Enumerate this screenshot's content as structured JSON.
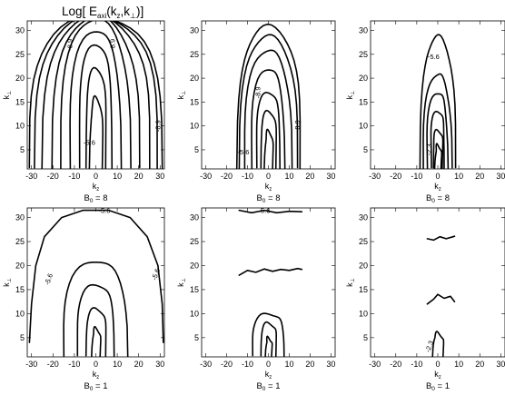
{
  "figure": {
    "title": "Log[ E",
    "title_sub1": "axi",
    "title_mid": "(k",
    "title_sub2": "z",
    "title_comma": ",k",
    "title_sub3": "⊥",
    "title_end": ")]"
  },
  "chart_data": [
    {
      "type": "contour",
      "panel": "top-left",
      "xlabel": "k",
      "xlabel_sub": "z",
      "ylabel": "k",
      "ylabel_sub": "⊥",
      "caption": "B",
      "caption_sub": "0",
      "caption_value": "= 8",
      "xlim": [
        -32,
        32
      ],
      "ylim": [
        1,
        32
      ],
      "xticks": [
        -30,
        -20,
        -10,
        0,
        10,
        20,
        30
      ],
      "yticks": [
        5,
        10,
        15,
        20,
        25,
        30
      ],
      "contour_labels": [
        {
          "text": "-8.9",
          "x": -11,
          "y": 27,
          "angle": -90
        },
        {
          "text": "-8.9",
          "x": 9,
          "y": 27,
          "angle": -90
        },
        {
          "text": "-8.9",
          "x": 30,
          "y": 10,
          "angle": -90
        },
        {
          "text": "-5.6",
          "x": -3,
          "y": 6
        }
      ]
    },
    {
      "type": "contour",
      "panel": "top-middle",
      "xlabel": "k",
      "xlabel_sub": "z",
      "ylabel": "k",
      "ylabel_sub": "⊥",
      "caption": "B",
      "caption_sub": "0",
      "caption_value": "= 8",
      "xlim": [
        -32,
        32
      ],
      "ylim": [
        1,
        32
      ],
      "xticks": [
        -30,
        -20,
        -10,
        0,
        10,
        20,
        30
      ],
      "yticks": [
        5,
        10,
        15,
        20,
        25,
        30
      ],
      "contour_labels": [
        {
          "text": "-8.9",
          "x": -4,
          "y": 17,
          "angle": -90
        },
        {
          "text": "-8.9",
          "x": 15,
          "y": 10,
          "angle": -90
        },
        {
          "text": "-5.6",
          "x": -12,
          "y": 4
        }
      ]
    },
    {
      "type": "contour",
      "panel": "top-right",
      "xlabel": "k",
      "xlabel_sub": "z",
      "ylabel": "k",
      "ylabel_sub": "⊥",
      "caption": "B",
      "caption_sub": "0",
      "caption_value": "= 8",
      "xlim": [
        -32,
        32
      ],
      "ylim": [
        1,
        32
      ],
      "xticks": [
        -30,
        -20,
        -10,
        0,
        10,
        20,
        30
      ],
      "yticks": [
        5,
        10,
        15,
        20,
        25,
        30
      ],
      "contour_labels": [
        {
          "text": "-5.6",
          "x": -2,
          "y": 24
        },
        {
          "text": "-2.3",
          "x": -3,
          "y": 5,
          "angle": -90
        }
      ]
    },
    {
      "type": "contour",
      "panel": "bottom-left",
      "xlabel": "k",
      "xlabel_sub": "z",
      "ylabel": "k",
      "ylabel_sub": "⊥",
      "caption": "B",
      "caption_sub": "0",
      "caption_value": "= 1",
      "xlim": [
        -32,
        32
      ],
      "ylim": [
        1,
        32
      ],
      "xticks": [
        -30,
        -20,
        -10,
        0,
        10,
        20,
        30
      ],
      "yticks": [
        5,
        10,
        15,
        20,
        25,
        30
      ],
      "contour_labels": [
        {
          "text": "-5.6",
          "x": 4,
          "y": 31
        },
        {
          "text": "-5.6",
          "x": -21,
          "y": 17,
          "angle": -70
        },
        {
          "text": "-5.6",
          "x": 29,
          "y": 18,
          "angle": -70
        }
      ]
    },
    {
      "type": "contour",
      "panel": "bottom-middle",
      "xlabel": "k",
      "xlabel_sub": "z",
      "ylabel": "k",
      "ylabel_sub": "⊥",
      "caption": "B",
      "caption_sub": "0",
      "caption_value": "= 1",
      "xlim": [
        -32,
        32
      ],
      "ylim": [
        1,
        32
      ],
      "xticks": [
        -30,
        -20,
        -10,
        0,
        10,
        20,
        30
      ],
      "yticks": [
        5,
        10,
        15,
        20,
        25,
        30
      ],
      "contour_labels": [
        {
          "text": "-5.6",
          "x": -2,
          "y": 31
        }
      ]
    },
    {
      "type": "contour",
      "panel": "bottom-right",
      "xlabel": "k",
      "xlabel_sub": "z",
      "ylabel": "k",
      "ylabel_sub": "⊥",
      "caption": "B",
      "caption_sub": "0",
      "caption_value": "= 1",
      "xlim": [
        -32,
        32
      ],
      "ylim": [
        1,
        32
      ],
      "xticks": [
        -30,
        -20,
        -10,
        0,
        10,
        20,
        30
      ],
      "yticks": [
        5,
        10,
        15,
        20,
        25,
        30
      ],
      "contour_labels": [
        {
          "text": "-2.3",
          "x": -3,
          "y": 3,
          "angle": -70
        }
      ]
    }
  ]
}
